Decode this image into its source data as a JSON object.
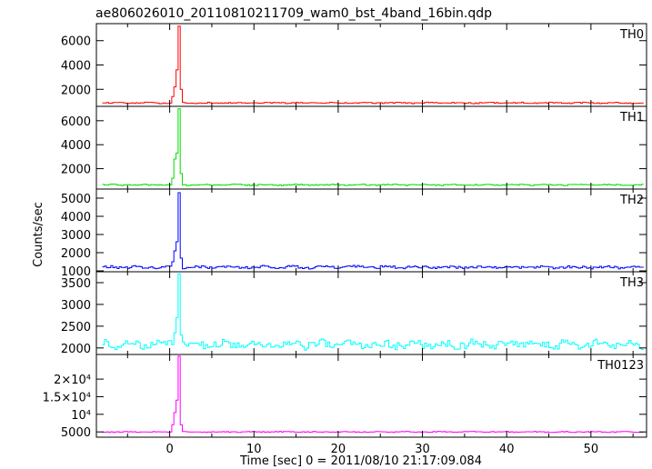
{
  "chart_data": {
    "type": "line",
    "title": "ae806026010_20110810211709_wam0_bst_4band_16bin.qdp",
    "xlabel": "Time [sec] 0 = 2011/08/10 21:17:09.084",
    "ylabel": "Counts/sec",
    "xlim": [
      -8.7,
      56.6
    ],
    "xticks": [
      0,
      10,
      20,
      30,
      40,
      50
    ],
    "xtick_labels": [
      "0",
      "10",
      "20",
      "30",
      "40",
      "50"
    ],
    "grid": false,
    "x_step": 0.25,
    "panels": [
      {
        "label": "TH0",
        "color": "#ff0000",
        "ylim": [
          600,
          7400
        ],
        "yticks": [
          2000,
          4000,
          6000
        ],
        "ytick_labels": [
          "2000",
          "4000",
          "6000"
        ],
        "baseline": 880,
        "noise": 45,
        "peak_x": [
          0.25,
          0.5,
          0.75,
          1.0,
          1.25
        ],
        "peak_y": [
          1400,
          2200,
          3600,
          7200,
          2000
        ]
      },
      {
        "label": "TH1",
        "color": "#00dd00",
        "ylim": [
          300,
          7200
        ],
        "yticks": [
          2000,
          4000,
          6000
        ],
        "ytick_labels": [
          "2000",
          "4000",
          "6000"
        ],
        "baseline": 650,
        "noise": 45,
        "peak_x": [
          0.25,
          0.5,
          0.75,
          1.0,
          1.25
        ],
        "peak_y": [
          1200,
          2800,
          3300,
          7000,
          1600
        ]
      },
      {
        "label": "TH2",
        "color": "#0000ff",
        "ylim": [
          950,
          5500
        ],
        "yticks": [
          1000,
          2000,
          3000,
          4000,
          5000
        ],
        "ytick_labels": [
          "1000",
          "2000",
          "3000",
          "4000",
          "5000"
        ],
        "baseline": 1200,
        "noise": 70,
        "peak_x": [
          0.25,
          0.5,
          0.75,
          1.0,
          1.25
        ],
        "peak_y": [
          1500,
          2100,
          2600,
          5300,
          1700
        ]
      },
      {
        "label": "TH3",
        "color": "#00ffff",
        "ylim": [
          1850,
          3750
        ],
        "yticks": [
          2000,
          2500,
          3000,
          3500
        ],
        "ytick_labels": [
          "2000",
          "2500",
          "3000",
          "3500"
        ],
        "baseline": 2080,
        "noise": 90,
        "peak_x": [
          0.5,
          0.75,
          1.0,
          1.25
        ],
        "peak_y": [
          2350,
          2700,
          3700,
          2300
        ]
      },
      {
        "label": "TH0123",
        "color": "#ff00ff",
        "ylim": [
          3500,
          27000
        ],
        "yticks": [
          5000,
          10000,
          15000,
          20000
        ],
        "ytick_labels": [
          "5000",
          "10⁴",
          "1.5×10⁴",
          "2×10⁴"
        ],
        "baseline": 5000,
        "noise": 110,
        "peak_x": [
          0.25,
          0.5,
          0.75,
          1.0,
          1.25
        ],
        "peak_y": [
          7000,
          10500,
          14000,
          26500,
          7000
        ]
      }
    ]
  }
}
